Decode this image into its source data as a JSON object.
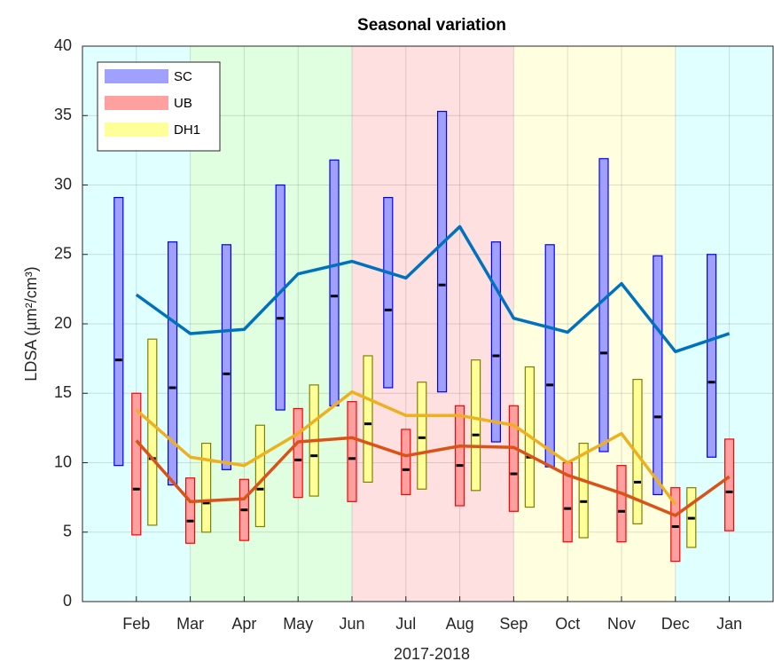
{
  "chart_data": {
    "type": "range-box",
    "title": "Seasonal variation",
    "x_label": "2017-2018",
    "y_label": "LDSA (µm²/cm³)",
    "categories": [
      "Feb",
      "Mar",
      "Apr",
      "May",
      "Jun",
      "Jul",
      "Aug",
      "Sep",
      "Oct",
      "Nov",
      "Dec",
      "Jan"
    ],
    "ylim": [
      0,
      40
    ],
    "yticks": [
      0,
      5,
      10,
      15,
      20,
      25,
      30,
      35,
      40
    ],
    "grid": true,
    "legend": "top left",
    "background_bands": [
      {
        "color": "#e0ffff",
        "end": "Mar"
      },
      {
        "color": "#e0ffe0",
        "start": "Mar",
        "end": "Jun"
      },
      {
        "color": "#ffe0e0",
        "start": "Jun",
        "end": "Sep"
      },
      {
        "color": "#ffffe0",
        "start": "Sep",
        "end": "Dec"
      },
      {
        "color": "#e0ffff",
        "start": "Dec"
      }
    ],
    "series": [
      {
        "name": "SC",
        "color": "#a0a0ff",
        "edge_color": "#0000ff",
        "line_color": "#0072bd",
        "max": [
          29.1,
          25.9,
          25.7,
          30.0,
          31.8,
          29.1,
          35.3,
          25.9,
          25.7,
          31.9,
          24.9,
          25.0
        ],
        "min": [
          9.8,
          8.4,
          9.5,
          13.8,
          14.1,
          15.4,
          15.1,
          11.5,
          9.7,
          10.8,
          7.7,
          10.4
        ],
        "median": [
          17.4,
          15.4,
          16.4,
          20.4,
          22.0,
          21.0,
          22.8,
          17.7,
          15.6,
          17.9,
          13.3,
          15.8
        ],
        "mean": [
          22.1,
          19.3,
          19.6,
          23.6,
          24.5,
          23.3,
          27.0,
          20.4,
          19.4,
          22.9,
          18.0,
          19.3
        ]
      },
      {
        "name": "UB",
        "color": "#ffa0a0",
        "edge_color": "#ff0000",
        "line_color": "#d95319",
        "max": [
          15.0,
          8.9,
          8.8,
          13.9,
          14.4,
          12.4,
          14.1,
          14.1,
          10.0,
          9.8,
          8.2,
          11.7
        ],
        "min": [
          4.8,
          4.2,
          4.4,
          7.5,
          7.2,
          7.7,
          6.9,
          6.5,
          4.3,
          4.3,
          2.9,
          5.1
        ],
        "median": [
          8.1,
          5.8,
          6.6,
          10.2,
          10.3,
          9.5,
          9.8,
          9.2,
          6.7,
          6.5,
          5.4,
          7.9
        ],
        "mean": [
          11.6,
          7.2,
          7.4,
          11.5,
          11.8,
          10.5,
          11.2,
          11.1,
          9.1,
          7.8,
          6.2,
          9.0
        ]
      },
      {
        "name": "DH1",
        "color": "#ffff99",
        "edge_color": "#808000",
        "line_color": "#edb120",
        "max": [
          18.9,
          11.4,
          12.7,
          15.6,
          17.7,
          15.8,
          17.4,
          16.9,
          11.4,
          16.0,
          8.2,
          null
        ],
        "min": [
          5.5,
          5.0,
          5.4,
          7.6,
          8.6,
          8.1,
          8.0,
          6.8,
          4.6,
          5.6,
          3.9,
          null
        ],
        "median": [
          10.3,
          7.1,
          8.1,
          10.5,
          12.8,
          11.8,
          12.0,
          10.4,
          7.2,
          8.6,
          6.0,
          null
        ],
        "mean": [
          13.8,
          10.4,
          9.8,
          12.1,
          15.1,
          13.4,
          13.4,
          12.7,
          10.0,
          12.1,
          7.0,
          null
        ]
      }
    ]
  }
}
